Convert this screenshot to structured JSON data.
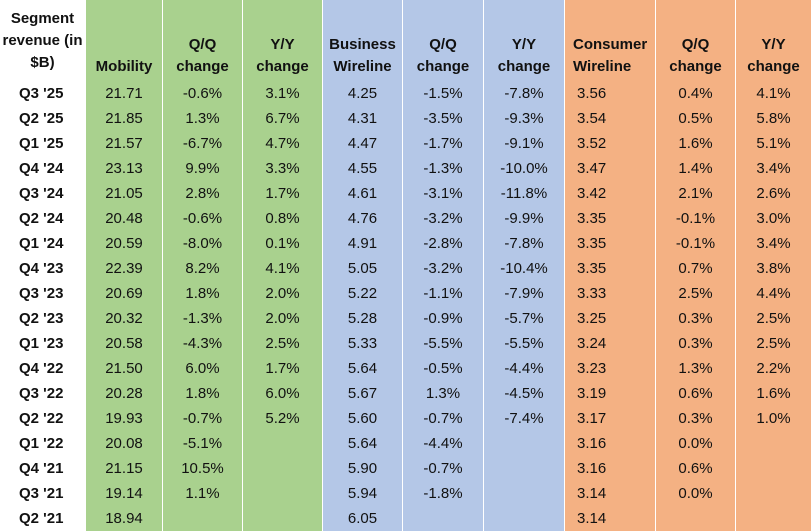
{
  "chart_data": {
    "type": "table",
    "colors": {
      "label_column": "#ffffff",
      "mobility": "#a9d18e",
      "business_wireline": "#b4c7e7",
      "consumer_wireline": "#f4b183"
    },
    "headers": [
      "Segment revenue (in $B)",
      "Mobility",
      "Q/Q change",
      "Y/Y change",
      "Business Wireline",
      "Q/Q change",
      "Y/Y change",
      "Consumer Wireline",
      "Q/Q change",
      "Y/Y change"
    ],
    "rows": [
      [
        "Q3 '25",
        "21.71",
        "-0.6%",
        "3.1%",
        "4.25",
        "-1.5%",
        "-7.8%",
        "3.56",
        "0.4%",
        "4.1%"
      ],
      [
        "Q2 '25",
        "21.85",
        "1.3%",
        "6.7%",
        "4.31",
        "-3.5%",
        "-9.3%",
        "3.54",
        "0.5%",
        "5.8%"
      ],
      [
        "Q1 '25",
        "21.57",
        "-6.7%",
        "4.7%",
        "4.47",
        "-1.7%",
        "-9.1%",
        "3.52",
        "1.6%",
        "5.1%"
      ],
      [
        "Q4 '24",
        "23.13",
        "9.9%",
        "3.3%",
        "4.55",
        "-1.3%",
        "-10.0%",
        "3.47",
        "1.4%",
        "3.4%"
      ],
      [
        "Q3 '24",
        "21.05",
        "2.8%",
        "1.7%",
        "4.61",
        "-3.1%",
        "-11.8%",
        "3.42",
        "2.1%",
        "2.6%"
      ],
      [
        "Q2 '24",
        "20.48",
        "-0.6%",
        "0.8%",
        "4.76",
        "-3.2%",
        "-9.9%",
        "3.35",
        "-0.1%",
        "3.0%"
      ],
      [
        "Q1 '24",
        "20.59",
        "-8.0%",
        "0.1%",
        "4.91",
        "-2.8%",
        "-7.8%",
        "3.35",
        "-0.1%",
        "3.4%"
      ],
      [
        "Q4 '23",
        "22.39",
        "8.2%",
        "4.1%",
        "5.05",
        "-3.2%",
        "-10.4%",
        "3.35",
        "0.7%",
        "3.8%"
      ],
      [
        "Q3 '23",
        "20.69",
        "1.8%",
        "2.0%",
        "5.22",
        "-1.1%",
        "-7.9%",
        "3.33",
        "2.5%",
        "4.4%"
      ],
      [
        "Q2 '23",
        "20.32",
        "-1.3%",
        "2.0%",
        "5.28",
        "-0.9%",
        "-5.7%",
        "3.25",
        "0.3%",
        "2.5%"
      ],
      [
        "Q1 '23",
        "20.58",
        "-4.3%",
        "2.5%",
        "5.33",
        "-5.5%",
        "-5.5%",
        "3.24",
        "0.3%",
        "2.5%"
      ],
      [
        "Q4 '22",
        "21.50",
        "6.0%",
        "1.7%",
        "5.64",
        "-0.5%",
        "-4.4%",
        "3.23",
        "1.3%",
        "2.2%"
      ],
      [
        "Q3 '22",
        "20.28",
        "1.8%",
        "6.0%",
        "5.67",
        "1.3%",
        "-4.5%",
        "3.19",
        "0.6%",
        "1.6%"
      ],
      [
        "Q2 '22",
        "19.93",
        "-0.7%",
        "5.2%",
        "5.60",
        "-0.7%",
        "-7.4%",
        "3.17",
        "0.3%",
        "1.0%"
      ],
      [
        "Q1 '22",
        "20.08",
        "-5.1%",
        "",
        "5.64",
        "-4.4%",
        "",
        "3.16",
        "0.0%",
        ""
      ],
      [
        "Q4 '21",
        "21.15",
        "10.5%",
        "",
        "5.90",
        "-0.7%",
        "",
        "3.16",
        "0.6%",
        ""
      ],
      [
        "Q3 '21",
        "19.14",
        "1.1%",
        "",
        "5.94",
        "-1.8%",
        "",
        "3.14",
        "0.0%",
        ""
      ],
      [
        "Q2 '21",
        "18.94",
        "",
        "",
        "6.05",
        "",
        "",
        "3.14",
        "",
        ""
      ]
    ]
  }
}
